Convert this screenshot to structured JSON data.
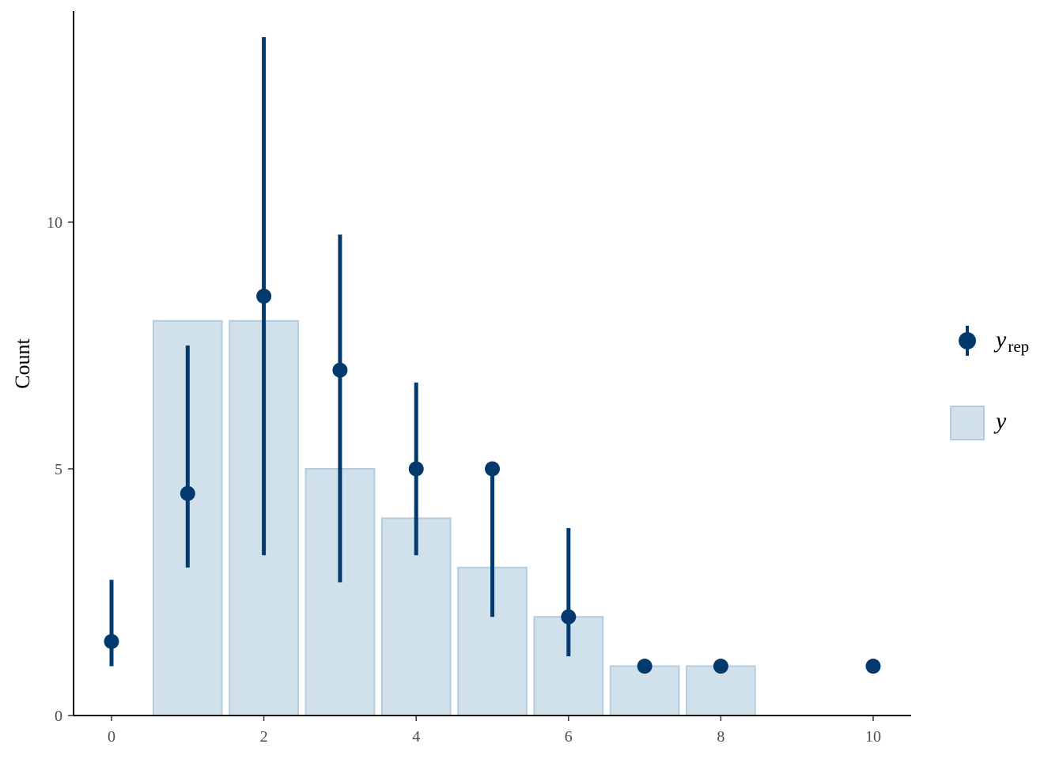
{
  "chart_data": {
    "type": "bar",
    "ylabel": "Count",
    "xlabel": "",
    "xlim": [
      -0.5,
      10.5
    ],
    "ylim": [
      0,
      14
    ],
    "x_ticks": [
      0,
      2,
      4,
      6,
      8,
      10
    ],
    "y_ticks": [
      0,
      5,
      10
    ],
    "grid": false,
    "legend_position": "right",
    "observed": {
      "name": "y",
      "color_fill": "#d1e1ec",
      "color_stroke": "#b3cde0",
      "bars": [
        {
          "x": 1,
          "count": 8
        },
        {
          "x": 2,
          "count": 8
        },
        {
          "x": 3,
          "count": 5
        },
        {
          "x": 4,
          "count": 4
        },
        {
          "x": 5,
          "count": 3
        },
        {
          "x": 6,
          "count": 2
        },
        {
          "x": 7,
          "count": 1
        },
        {
          "x": 8,
          "count": 1
        }
      ]
    },
    "replicated": {
      "name_main": "y",
      "name_sub": "rep",
      "color": "#03396c",
      "points": [
        {
          "x": 0,
          "median": 1.5,
          "low": 1.0,
          "high": 2.75
        },
        {
          "x": 1,
          "median": 4.5,
          "low": 3.0,
          "high": 7.5
        },
        {
          "x": 2,
          "median": 8.5,
          "low": 3.25,
          "high": 13.75
        },
        {
          "x": 3,
          "median": 7.0,
          "low": 2.7,
          "high": 9.75
        },
        {
          "x": 4,
          "median": 5.0,
          "low": 3.25,
          "high": 6.75
        },
        {
          "x": 5,
          "median": 5.0,
          "low": 2.0,
          "high": 5.0
        },
        {
          "x": 6,
          "median": 2.0,
          "low": 1.2,
          "high": 3.8
        },
        {
          "x": 7,
          "median": 1.0,
          "low": 1.0,
          "high": 1.0
        },
        {
          "x": 8,
          "median": 1.0,
          "low": 1.0,
          "high": 1.0
        },
        {
          "x": 10,
          "median": 1.0,
          "low": 1.0,
          "high": 1.0
        }
      ]
    }
  }
}
